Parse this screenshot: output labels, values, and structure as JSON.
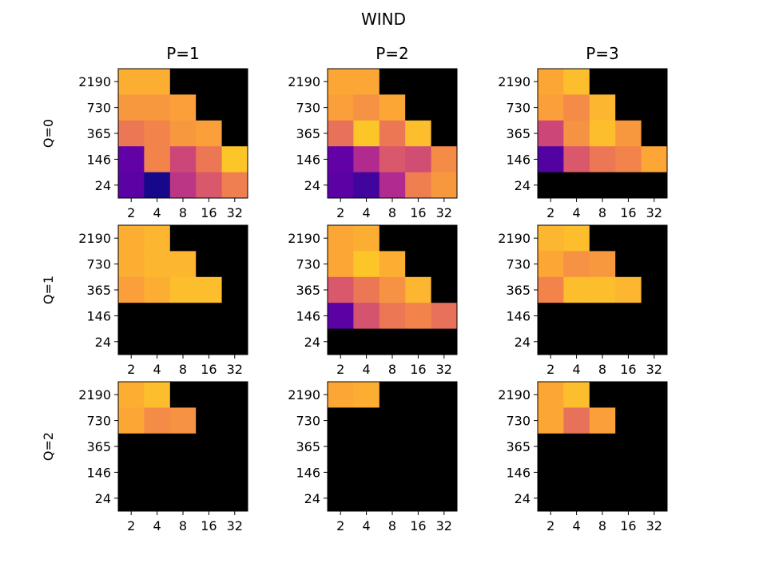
{
  "chart_data": {
    "type": "heatmap",
    "title": "WIND",
    "colormap": "plasma",
    "masked_color": "#000000",
    "x_ticks": [
      "2",
      "4",
      "8",
      "16",
      "32"
    ],
    "y_ticks": [
      "2190",
      "730",
      "365",
      "146",
      "24"
    ],
    "col_titles": [
      "P=1",
      "P=2",
      "P=3"
    ],
    "row_labels": [
      "Q=0",
      "Q=1",
      "Q=2"
    ],
    "panels": [
      {
        "row": 0,
        "col": 0,
        "values": [
          [
            0.82,
            0.82,
            null,
            null,
            null
          ],
          [
            0.76,
            0.76,
            0.78,
            null,
            null
          ],
          [
            0.66,
            0.7,
            0.76,
            0.78,
            null
          ],
          [
            0.18,
            0.7,
            0.5,
            0.66,
            0.88
          ],
          [
            0.16,
            0.02,
            0.44,
            0.56,
            0.68
          ]
        ]
      },
      {
        "row": 0,
        "col": 1,
        "values": [
          [
            0.8,
            0.8,
            null,
            null,
            null
          ],
          [
            0.78,
            0.74,
            0.8,
            null,
            null
          ],
          [
            0.64,
            0.88,
            0.66,
            0.86,
            null
          ],
          [
            0.18,
            0.4,
            0.56,
            0.52,
            0.72
          ],
          [
            0.16,
            0.1,
            0.4,
            0.68,
            0.76
          ]
        ]
      },
      {
        "row": 0,
        "col": 2,
        "values": [
          [
            0.8,
            0.86,
            null,
            null,
            null
          ],
          [
            0.78,
            0.72,
            0.84,
            null,
            null
          ],
          [
            0.5,
            0.74,
            0.86,
            0.76,
            null
          ],
          [
            0.14,
            0.56,
            0.66,
            0.7,
            0.8
          ],
          [
            null,
            null,
            null,
            null,
            null
          ]
        ]
      },
      {
        "row": 1,
        "col": 0,
        "values": [
          [
            0.82,
            0.84,
            null,
            null,
            null
          ],
          [
            0.82,
            0.84,
            0.84,
            null,
            null
          ],
          [
            0.78,
            0.82,
            0.86,
            0.86,
            null
          ],
          [
            null,
            null,
            null,
            null,
            null
          ],
          [
            null,
            null,
            null,
            null,
            null
          ]
        ]
      },
      {
        "row": 1,
        "col": 1,
        "values": [
          [
            0.8,
            0.82,
            null,
            null,
            null
          ],
          [
            0.8,
            0.88,
            0.82,
            null,
            null
          ],
          [
            0.56,
            0.66,
            0.74,
            0.84,
            null
          ],
          [
            0.16,
            0.54,
            0.66,
            0.7,
            0.64
          ],
          [
            null,
            null,
            null,
            null,
            null
          ]
        ]
      },
      {
        "row": 1,
        "col": 2,
        "values": [
          [
            0.84,
            0.86,
            null,
            null,
            null
          ],
          [
            0.8,
            0.74,
            0.76,
            null,
            null
          ],
          [
            0.7,
            0.86,
            0.86,
            0.84,
            null
          ],
          [
            null,
            null,
            null,
            null,
            null
          ],
          [
            null,
            null,
            null,
            null,
            null
          ]
        ]
      },
      {
        "row": 2,
        "col": 0,
        "values": [
          [
            0.82,
            0.86,
            null,
            null,
            null
          ],
          [
            0.8,
            0.72,
            0.74,
            null,
            null
          ],
          [
            null,
            null,
            null,
            null,
            null
          ],
          [
            null,
            null,
            null,
            null,
            null
          ],
          [
            null,
            null,
            null,
            null,
            null
          ]
        ]
      },
      {
        "row": 2,
        "col": 1,
        "values": [
          [
            0.8,
            0.82,
            null,
            null,
            null
          ],
          [
            null,
            null,
            null,
            null,
            null
          ],
          [
            null,
            null,
            null,
            null,
            null
          ],
          [
            null,
            null,
            null,
            null,
            null
          ],
          [
            null,
            null,
            null,
            null,
            null
          ]
        ]
      },
      {
        "row": 2,
        "col": 2,
        "values": [
          [
            0.8,
            0.86,
            null,
            null,
            null
          ],
          [
            0.8,
            0.64,
            0.78,
            null,
            null
          ],
          [
            null,
            null,
            null,
            null,
            null
          ],
          [
            null,
            null,
            null,
            null,
            null
          ],
          [
            null,
            null,
            null,
            null,
            null
          ]
        ]
      }
    ]
  }
}
